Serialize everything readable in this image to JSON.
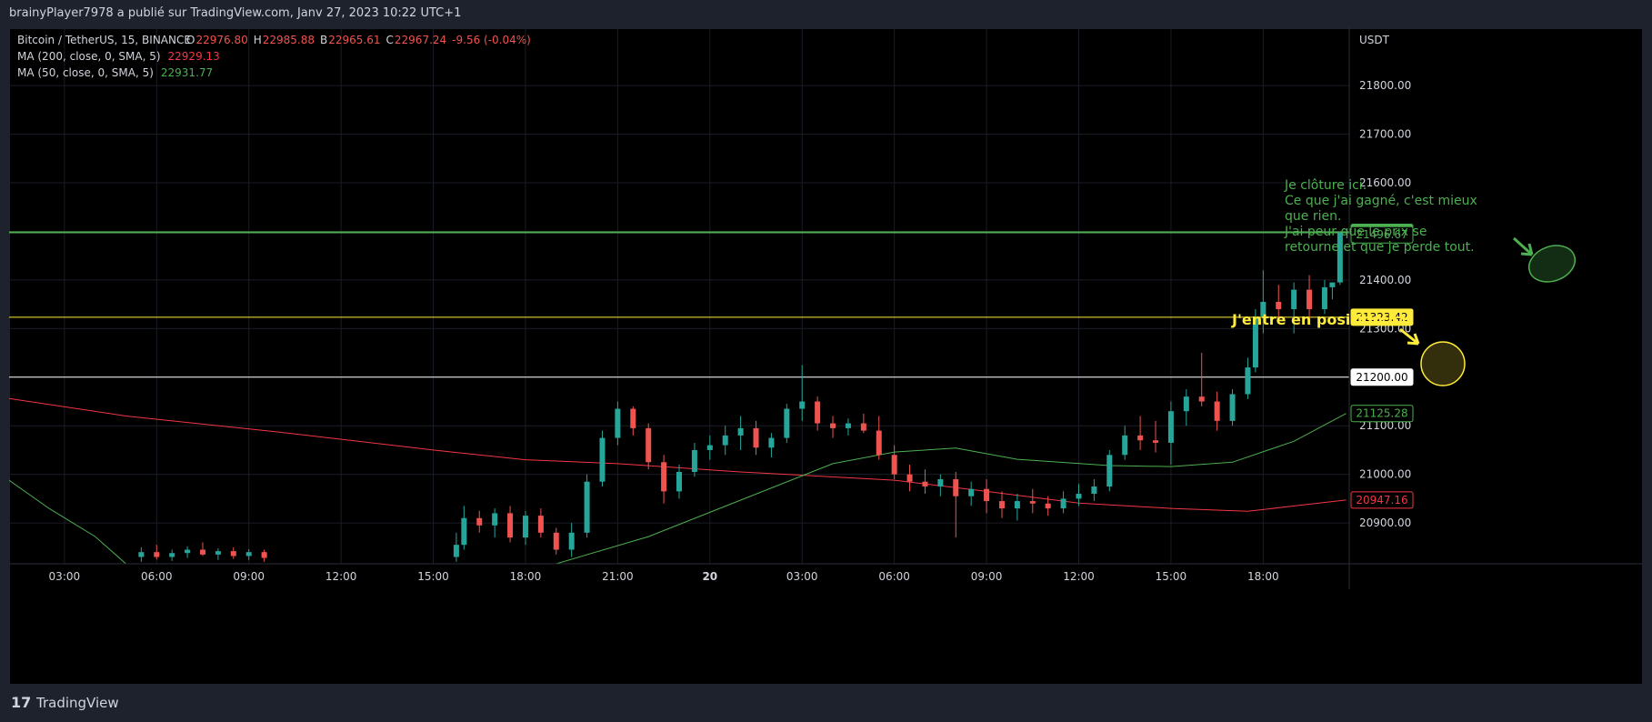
{
  "header": {
    "published": "brainyPlayer7978 a publié sur TradingView.com, Janv 27, 2023 10:22 UTC+1"
  },
  "footer": {
    "brand": "TradingView"
  },
  "chart_data": {
    "type": "candlestick",
    "title": "Bitcoin / TetherUS, 15, BINANCE",
    "ohlc_legend": [
      {
        "label": "O",
        "value": "22976.80"
      },
      {
        "label": "H",
        "value": "22985.88"
      },
      {
        "label": "B",
        "value": "22965.61"
      },
      {
        "label": "C",
        "value": "22967.24"
      }
    ],
    "change": "-9.56 (-0.04%)",
    "indicator_legend": [
      {
        "label": "MA (200, close, 0, SMA, 5)",
        "value": "22929.13",
        "color": "#f23645"
      },
      {
        "label": "MA (50, close, 0, SMA, 5)",
        "value": "22931.77",
        "color": "#4caf50"
      }
    ],
    "y_axis_label": "USDT",
    "up_color": "#26a69a",
    "down_color": "#ef5350",
    "xlim": [
      1.2,
      44.8
    ],
    "xticks": [
      {
        "value": 3,
        "label": "03:00"
      },
      {
        "value": 6,
        "label": "06:00"
      },
      {
        "value": 9,
        "label": "09:00"
      },
      {
        "value": 12,
        "label": "12:00"
      },
      {
        "value": 15,
        "label": "15:00"
      },
      {
        "value": 18,
        "label": "18:00"
      },
      {
        "value": 21,
        "label": "21:00"
      },
      {
        "value": 24,
        "label": "20"
      },
      {
        "value": 27,
        "label": "03:00"
      },
      {
        "value": 30,
        "label": "06:00"
      },
      {
        "value": 33,
        "label": "09:00"
      },
      {
        "value": 36,
        "label": "12:00"
      },
      {
        "value": 39,
        "label": "15:00"
      },
      {
        "value": 42,
        "label": "18:00"
      }
    ],
    "ylim": [
      20816,
      21920
    ],
    "yticks": [
      {
        "value": 20900,
        "label": "20900.00"
      },
      {
        "value": 21000,
        "label": "21000.00"
      },
      {
        "value": 21100,
        "label": "21100.00"
      },
      {
        "value": 21200,
        "label": "21200.00"
      },
      {
        "value": 21300,
        "label": "21300.00"
      },
      {
        "value": 21400,
        "label": "21400.00"
      },
      {
        "value": 21500,
        "label": "21500.00"
      },
      {
        "value": 21600,
        "label": "21600.00"
      },
      {
        "value": 21700,
        "label": "21700.00"
      },
      {
        "value": 21800,
        "label": "21800.00"
      }
    ],
    "grid": true,
    "x": [
      5.5,
      6,
      6.5,
      7,
      7.5,
      8,
      8.5,
      9,
      9.5,
      15.75,
      16,
      16.5,
      17,
      17.5,
      18,
      18.5,
      19,
      19.5,
      20,
      20.5,
      21,
      21.5,
      22,
      22.5,
      23,
      23.5,
      24,
      24.5,
      25,
      25.5,
      26,
      26.5,
      27,
      27.5,
      28,
      28.5,
      29,
      29.5,
      30,
      30.5,
      31,
      31.5,
      32,
      32.5,
      33,
      33.5,
      34,
      34.5,
      35,
      35.5,
      36,
      36.5,
      37,
      37.5,
      38,
      38.5,
      39,
      39.5,
      40,
      40.5,
      41,
      41.5,
      41.75,
      42,
      42.5,
      43,
      43.5,
      44,
      44.25,
      44.5
    ],
    "open": [
      20830,
      20840,
      20830,
      20838,
      20845,
      20835,
      20842,
      20832,
      20840,
      20830,
      20855,
      20910,
      20895,
      20920,
      20870,
      20915,
      20880,
      20845,
      20880,
      20985,
      21075,
      21135,
      21095,
      21025,
      20965,
      21005,
      21050,
      21060,
      21080,
      21095,
      21055,
      21075,
      21135,
      21150,
      21105,
      21095,
      21105,
      21090,
      21040,
      21000,
      20985,
      20975,
      20990,
      20955,
      20970,
      20945,
      20930,
      20945,
      20940,
      20930,
      20950,
      20960,
      20975,
      21040,
      21080,
      21070,
      21065,
      21130,
      21160,
      21150,
      21110,
      21165,
      21220,
      21325,
      21355,
      21340,
      21380,
      21340,
      21385,
      21395
    ],
    "high": [
      20850,
      20855,
      20845,
      20852,
      20860,
      20848,
      20850,
      20846,
      20845,
      20880,
      20935,
      20925,
      20930,
      20935,
      20925,
      20930,
      20890,
      20900,
      21000,
      21090,
      21150,
      21140,
      21105,
      21040,
      21020,
      21065,
      21080,
      21100,
      21120,
      21110,
      21085,
      21145,
      21225,
      21160,
      21120,
      21115,
      21125,
      21120,
      21060,
      21020,
      21010,
      21000,
      21005,
      20985,
      20990,
      20965,
      20960,
      20970,
      20955,
      20965,
      20980,
      20990,
      21050,
      21100,
      21120,
      21110,
      21150,
      21175,
      21250,
      21170,
      21175,
      21240,
      21340,
      21420,
      21390,
      21395,
      21410,
      21400,
      21395,
      21500
    ],
    "low": [
      20820,
      20825,
      20822,
      20828,
      20832,
      20824,
      20826,
      20824,
      20820,
      20820,
      20845,
      20880,
      20870,
      20860,
      20855,
      20870,
      20835,
      20830,
      20870,
      20975,
      21060,
      21080,
      21010,
      20940,
      20950,
      20995,
      21030,
      21040,
      21050,
      21040,
      21035,
      21065,
      21110,
      21090,
      21075,
      21080,
      21085,
      21030,
      20990,
      20965,
      20960,
      20955,
      20870,
      20935,
      20920,
      20910,
      20905,
      20920,
      20915,
      20920,
      20935,
      20945,
      20965,
      21030,
      21050,
      21045,
      21020,
      21100,
      21140,
      21090,
      21100,
      21155,
      21210,
      21290,
      21320,
      21290,
      21320,
      21330,
      21360,
      21390
    ],
    "close": [
      20840,
      20830,
      20838,
      20845,
      20835,
      20842,
      20832,
      20840,
      20828,
      20855,
      20910,
      20895,
      20920,
      20870,
      20915,
      20880,
      20845,
      20880,
      20985,
      21075,
      21135,
      21095,
      21025,
      20965,
      21005,
      21050,
      21060,
      21080,
      21095,
      21055,
      21075,
      21135,
      21150,
      21105,
      21095,
      21105,
      21090,
      21040,
      21000,
      20985,
      20975,
      20990,
      20955,
      20970,
      20945,
      20930,
      20945,
      20940,
      20930,
      20950,
      20960,
      20975,
      21040,
      21080,
      21070,
      21065,
      21130,
      21160,
      21150,
      21110,
      21165,
      21220,
      21325,
      21355,
      21340,
      21380,
      21340,
      21385,
      21395,
      21497
    ],
    "series": [
      {
        "name": "MA (200, close, 0, SMA, 5)",
        "color": "#f23645",
        "x": [
          1.2,
          5,
          10,
          15,
          18,
          21,
          25,
          30,
          33,
          36,
          39,
          41.5,
          43,
          44.7
        ],
        "values": [
          21156,
          21120,
          21087,
          21050,
          21030,
          21022,
          21005,
          20988,
          20965,
          20941,
          20930,
          20924,
          20935,
          20947.16
        ]
      },
      {
        "name": "MA (50, close, 0, SMA, 5)",
        "color": "#4caf50",
        "x": [
          1.2,
          2.5,
          4,
          5,
          12,
          19,
          22,
          25,
          28,
          30,
          32,
          34,
          37,
          39,
          41,
          43,
          44.7
        ],
        "values": [
          20988,
          20930,
          20872,
          20816,
          null,
          20816,
          20872,
          20947,
          21022,
          21046,
          21054,
          21031,
          21018,
          21016,
          21025,
          21068,
          21125.28
        ]
      }
    ],
    "price_lines": [
      {
        "value": 21497.94,
        "label": "21497.94",
        "color": "#4caf50",
        "text_color": "#000000"
      },
      {
        "value": 21323.42,
        "label": "21323.42",
        "color": "#ffeb3b",
        "text_color": "#000000"
      },
      {
        "value": 21200,
        "label": "21200.00",
        "color": "#ffffff",
        "text_color": "#000000"
      }
    ],
    "price_markers": [
      {
        "value": 21496.67,
        "label": "21496.67",
        "color": "#4caf50"
      },
      {
        "value": 21125.28,
        "label": "21125.28",
        "color": "#4caf50"
      },
      {
        "value": 20947.16,
        "label": "20947.16",
        "color": "#f23645"
      }
    ],
    "annotations": [
      {
        "text": "J'entre en position ici",
        "color": "#ffeb3b"
      },
      {
        "lines": [
          "Je clôture ici.",
          "Ce que j'ai gagné, c'est mieux",
          "que rien.",
          "J'ai peur que le prix se",
          "retourne et que je perde tout."
        ],
        "color": "#4caf50"
      }
    ]
  }
}
